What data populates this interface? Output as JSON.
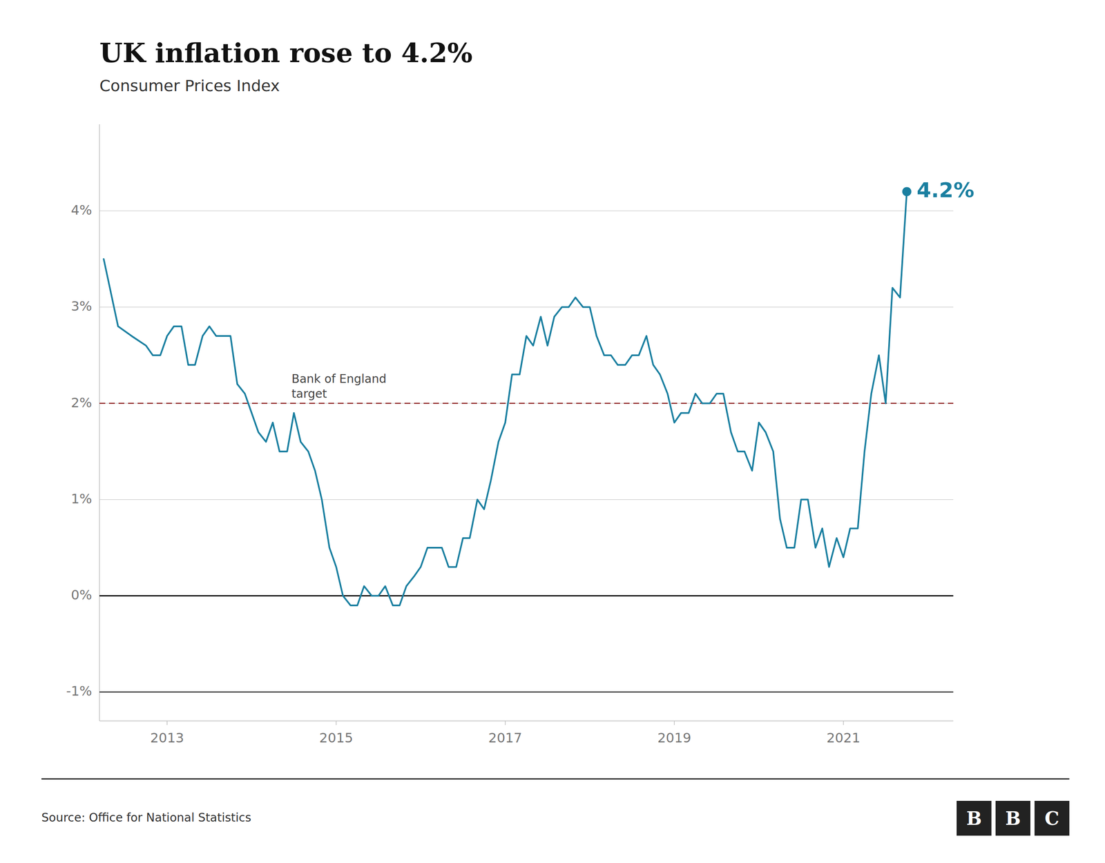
{
  "chart_data": {
    "type": "line",
    "title": "UK inflation rose to 4.2%",
    "subtitle": "Consumer Prices Index",
    "source": "Source: Office for National Statistics",
    "annotation": "4.2%",
    "logo": [
      "B",
      "B",
      "C"
    ],
    "color": "#1a7fa0",
    "grid": true,
    "xlim": [
      2012.2,
      2022.3
    ],
    "xticks": [
      2013,
      2015,
      2017,
      2019,
      2021
    ],
    "ylim": [
      -1.3,
      4.9
    ],
    "yticks": [
      {
        "value": -1,
        "label": "-1%"
      },
      {
        "value": 0,
        "label": "0%"
      },
      {
        "value": 1,
        "label": "1%"
      },
      {
        "value": 2,
        "label": "2%"
      },
      {
        "value": 3,
        "label": "3%"
      },
      {
        "value": 4,
        "label": "4%"
      }
    ],
    "target_line": {
      "value": 2.0,
      "label": "Bank of England\ntarget",
      "color": "#8b1a1a",
      "line_style": "dashed"
    },
    "reference_lines": [
      {
        "value": 0,
        "color": "#000000"
      },
      {
        "value": -1,
        "color": "#000000"
      }
    ],
    "x": [
      2012.25,
      2012.42,
      2012.58,
      2012.75,
      2012.83,
      2012.92,
      2013.0,
      2013.08,
      2013.17,
      2013.25,
      2013.33,
      2013.42,
      2013.5,
      2013.58,
      2013.67,
      2013.75,
      2013.83,
      2013.92,
      2014.0,
      2014.08,
      2014.17,
      2014.25,
      2014.33,
      2014.42,
      2014.5,
      2014.58,
      2014.67,
      2014.75,
      2014.83,
      2014.92,
      2015.0,
      2015.08,
      2015.17,
      2015.25,
      2015.33,
      2015.42,
      2015.5,
      2015.58,
      2015.67,
      2015.75,
      2015.83,
      2015.92,
      2016.0,
      2016.08,
      2016.17,
      2016.25,
      2016.33,
      2016.42,
      2016.5,
      2016.58,
      2016.67,
      2016.75,
      2016.83,
      2016.92,
      2017.0,
      2017.08,
      2017.17,
      2017.25,
      2017.33,
      2017.42,
      2017.5,
      2017.58,
      2017.67,
      2017.75,
      2017.83,
      2017.92,
      2018.0,
      2018.08,
      2018.17,
      2018.25,
      2018.33,
      2018.42,
      2018.5,
      2018.58,
      2018.67,
      2018.75,
      2018.83,
      2018.92,
      2019.0,
      2019.08,
      2019.17,
      2019.25,
      2019.33,
      2019.42,
      2019.5,
      2019.58,
      2019.67,
      2019.75,
      2019.83,
      2019.92,
      2020.0,
      2020.08,
      2020.17,
      2020.25,
      2020.33,
      2020.42,
      2020.5,
      2020.58,
      2020.67,
      2020.75,
      2020.83,
      2020.92,
      2021.0,
      2021.08,
      2021.17,
      2021.25,
      2021.33,
      2021.42,
      2021.5,
      2021.58,
      2021.67,
      2021.75
    ],
    "values": [
      3.5,
      2.8,
      2.7,
      2.6,
      2.5,
      2.5,
      2.7,
      2.8,
      2.8,
      2.4,
      2.4,
      2.7,
      2.8,
      2.7,
      2.7,
      2.7,
      2.2,
      2.1,
      1.9,
      1.7,
      1.6,
      1.8,
      1.5,
      1.5,
      1.9,
      1.6,
      1.5,
      1.3,
      1.0,
      0.5,
      0.3,
      0.0,
      -0.1,
      -0.1,
      0.1,
      0.0,
      0.0,
      0.1,
      -0.1,
      -0.1,
      0.1,
      0.2,
      0.3,
      0.5,
      0.5,
      0.5,
      0.3,
      0.3,
      0.6,
      0.6,
      1.0,
      0.9,
      1.2,
      1.6,
      1.8,
      2.3,
      2.3,
      2.7,
      2.6,
      2.9,
      2.6,
      2.9,
      3.0,
      3.0,
      3.1,
      3.0,
      3.0,
      2.7,
      2.5,
      2.5,
      2.4,
      2.4,
      2.5,
      2.5,
      2.7,
      2.4,
      2.3,
      2.1,
      1.8,
      1.9,
      1.9,
      2.1,
      2.0,
      2.0,
      2.1,
      2.1,
      1.7,
      1.5,
      1.5,
      1.3,
      1.8,
      1.7,
      1.5,
      0.8,
      0.5,
      0.5,
      1.0,
      1.0,
      0.5,
      0.7,
      0.3,
      0.6,
      0.4,
      0.7,
      0.7,
      1.5,
      2.1,
      2.5,
      2.0,
      3.2,
      3.1,
      4.2
    ]
  }
}
